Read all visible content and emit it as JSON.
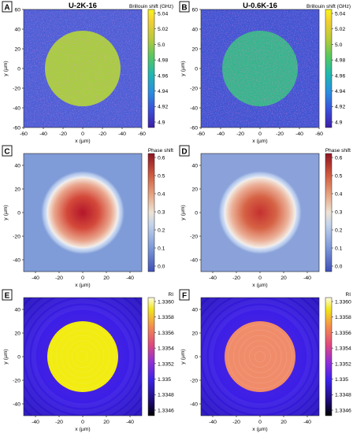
{
  "figure": {
    "panels": [
      {
        "letter": "A",
        "title": "U-2K-16",
        "cbar_label": "Brillouin shift (GHz)",
        "cbar_ticks": [
          "5.04",
          "5.02",
          "5.0",
          "4.98",
          "4.96",
          "4.94",
          "4.92",
          "4.9"
        ],
        "colormap": "brillouin",
        "disk_color": "#a6cf3f",
        "bg_color": "#4a5fd6",
        "speckle": true,
        "y_ticks": [
          "60",
          "40",
          "20",
          "0",
          "-20",
          "-40",
          "-60"
        ],
        "x_ticks": [
          "-60",
          "-40",
          "-20",
          "0",
          "-20",
          "-40",
          "-60"
        ],
        "ylabel": "y (µm)",
        "xlabel": "x (µm)"
      },
      {
        "letter": "B",
        "title": "U-0.6K-16",
        "cbar_label": "Brillouin shift (GHz)",
        "cbar_ticks": [
          "5.04",
          "5.02",
          "5.0",
          "4.98",
          "4.96",
          "4.94",
          "4.92",
          "4.9"
        ],
        "colormap": "brillouin",
        "disk_color": "#35b58a",
        "bg_color": "#3f55d2",
        "speckle": true,
        "y_ticks": [
          "60",
          "40",
          "20",
          "0",
          "-20",
          "-40",
          "-60"
        ],
        "x_ticks": [
          "-60",
          "-40",
          "-20",
          "0",
          "-20",
          "-40",
          "-60"
        ],
        "ylabel": "y (µm)",
        "xlabel": "x (µm)"
      },
      {
        "letter": "C",
        "title": "",
        "cbar_label": "Phase shift",
        "cbar_ticks": [
          "0.6",
          "0.5",
          "0.4",
          "0.3",
          "0.2",
          "0.1",
          "0.0"
        ],
        "colormap": "phase",
        "disk_color": "#c8382a",
        "bg_color": "#7f9bd8",
        "speckle": false,
        "y_ticks": [
          "40",
          "20",
          "0",
          "-20",
          "-40"
        ],
        "x_ticks": [
          "-40",
          "-20",
          "0",
          "20",
          "-40"
        ],
        "ylabel": "y (µm)",
        "xlabel": "x (µm)"
      },
      {
        "letter": "D",
        "title": "",
        "cbar_label": "Phase shift",
        "cbar_ticks": [
          "0.6",
          "0.5",
          "0.4",
          "0.3",
          "0.2",
          "0.1",
          "0.0"
        ],
        "colormap": "phase",
        "disk_color": "#d05a3c",
        "bg_color": "#8aa1da",
        "speckle": false,
        "y_ticks": [
          "40",
          "20",
          "0",
          "-20",
          "-40"
        ],
        "x_ticks": [
          "-40",
          "-20",
          "0",
          "20",
          "-40"
        ],
        "ylabel": "y (µm)",
        "xlabel": "x (µm)"
      },
      {
        "letter": "E",
        "title": "",
        "cbar_label": "RI",
        "cbar_ticks": [
          "1.3360",
          "1.3358",
          "1.3356",
          "1.3354",
          "1.3352",
          "1.335",
          "1.3348",
          "1.3346"
        ],
        "colormap": "ri",
        "disk_color": "#f2ec12",
        "bg_color": "#2a14e0",
        "speckle": false,
        "y_ticks": [
          "40",
          "20",
          "0",
          "-20",
          "-40"
        ],
        "x_ticks": [
          "-40",
          "-20",
          "0",
          "20",
          "-40"
        ],
        "ylabel": "y (µm)",
        "xlabel": "x (µm)"
      },
      {
        "letter": "F",
        "title": "",
        "cbar_label": "RI",
        "cbar_ticks": [
          "1.3360",
          "1.3358",
          "1.3356",
          "1.3354",
          "1.3352",
          "1.335",
          "1.3348",
          "1.3346"
        ],
        "colormap": "ri",
        "disk_color": "#f08c6a",
        "bg_color": "#3a1ee0",
        "speckle": false,
        "y_ticks": [
          "40",
          "20",
          "0",
          "-20",
          "-40"
        ],
        "x_ticks": [
          "-40",
          "-20",
          "0",
          "20",
          "-40"
        ],
        "ylabel": "y (µm)",
        "xlabel": "x (µm)"
      }
    ]
  }
}
